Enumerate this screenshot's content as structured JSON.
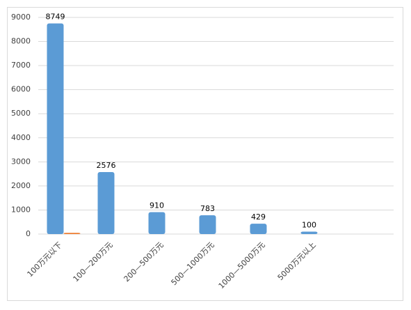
{
  "chart_data": {
    "type": "bar",
    "categories": [
      "100万元以下",
      "100—200万元",
      "200—500万元",
      "500—1000万元",
      "1000—5000万元",
      "5000万元以上",
      null
    ],
    "series": [
      {
        "color": "#5b9bd5",
        "values": [
          8749,
          2576,
          910,
          783,
          429,
          100,
          null
        ]
      },
      {
        "color": "#ed7d31",
        "values": [
          50,
          null,
          null,
          null,
          null,
          null,
          null
        ]
      }
    ],
    "data_labels_series": 0,
    "ylim": [
      0,
      9000
    ],
    "yticks": [
      0,
      1000,
      2000,
      3000,
      4000,
      5000,
      6000,
      7000,
      8000,
      9000
    ],
    "grid": true
  }
}
